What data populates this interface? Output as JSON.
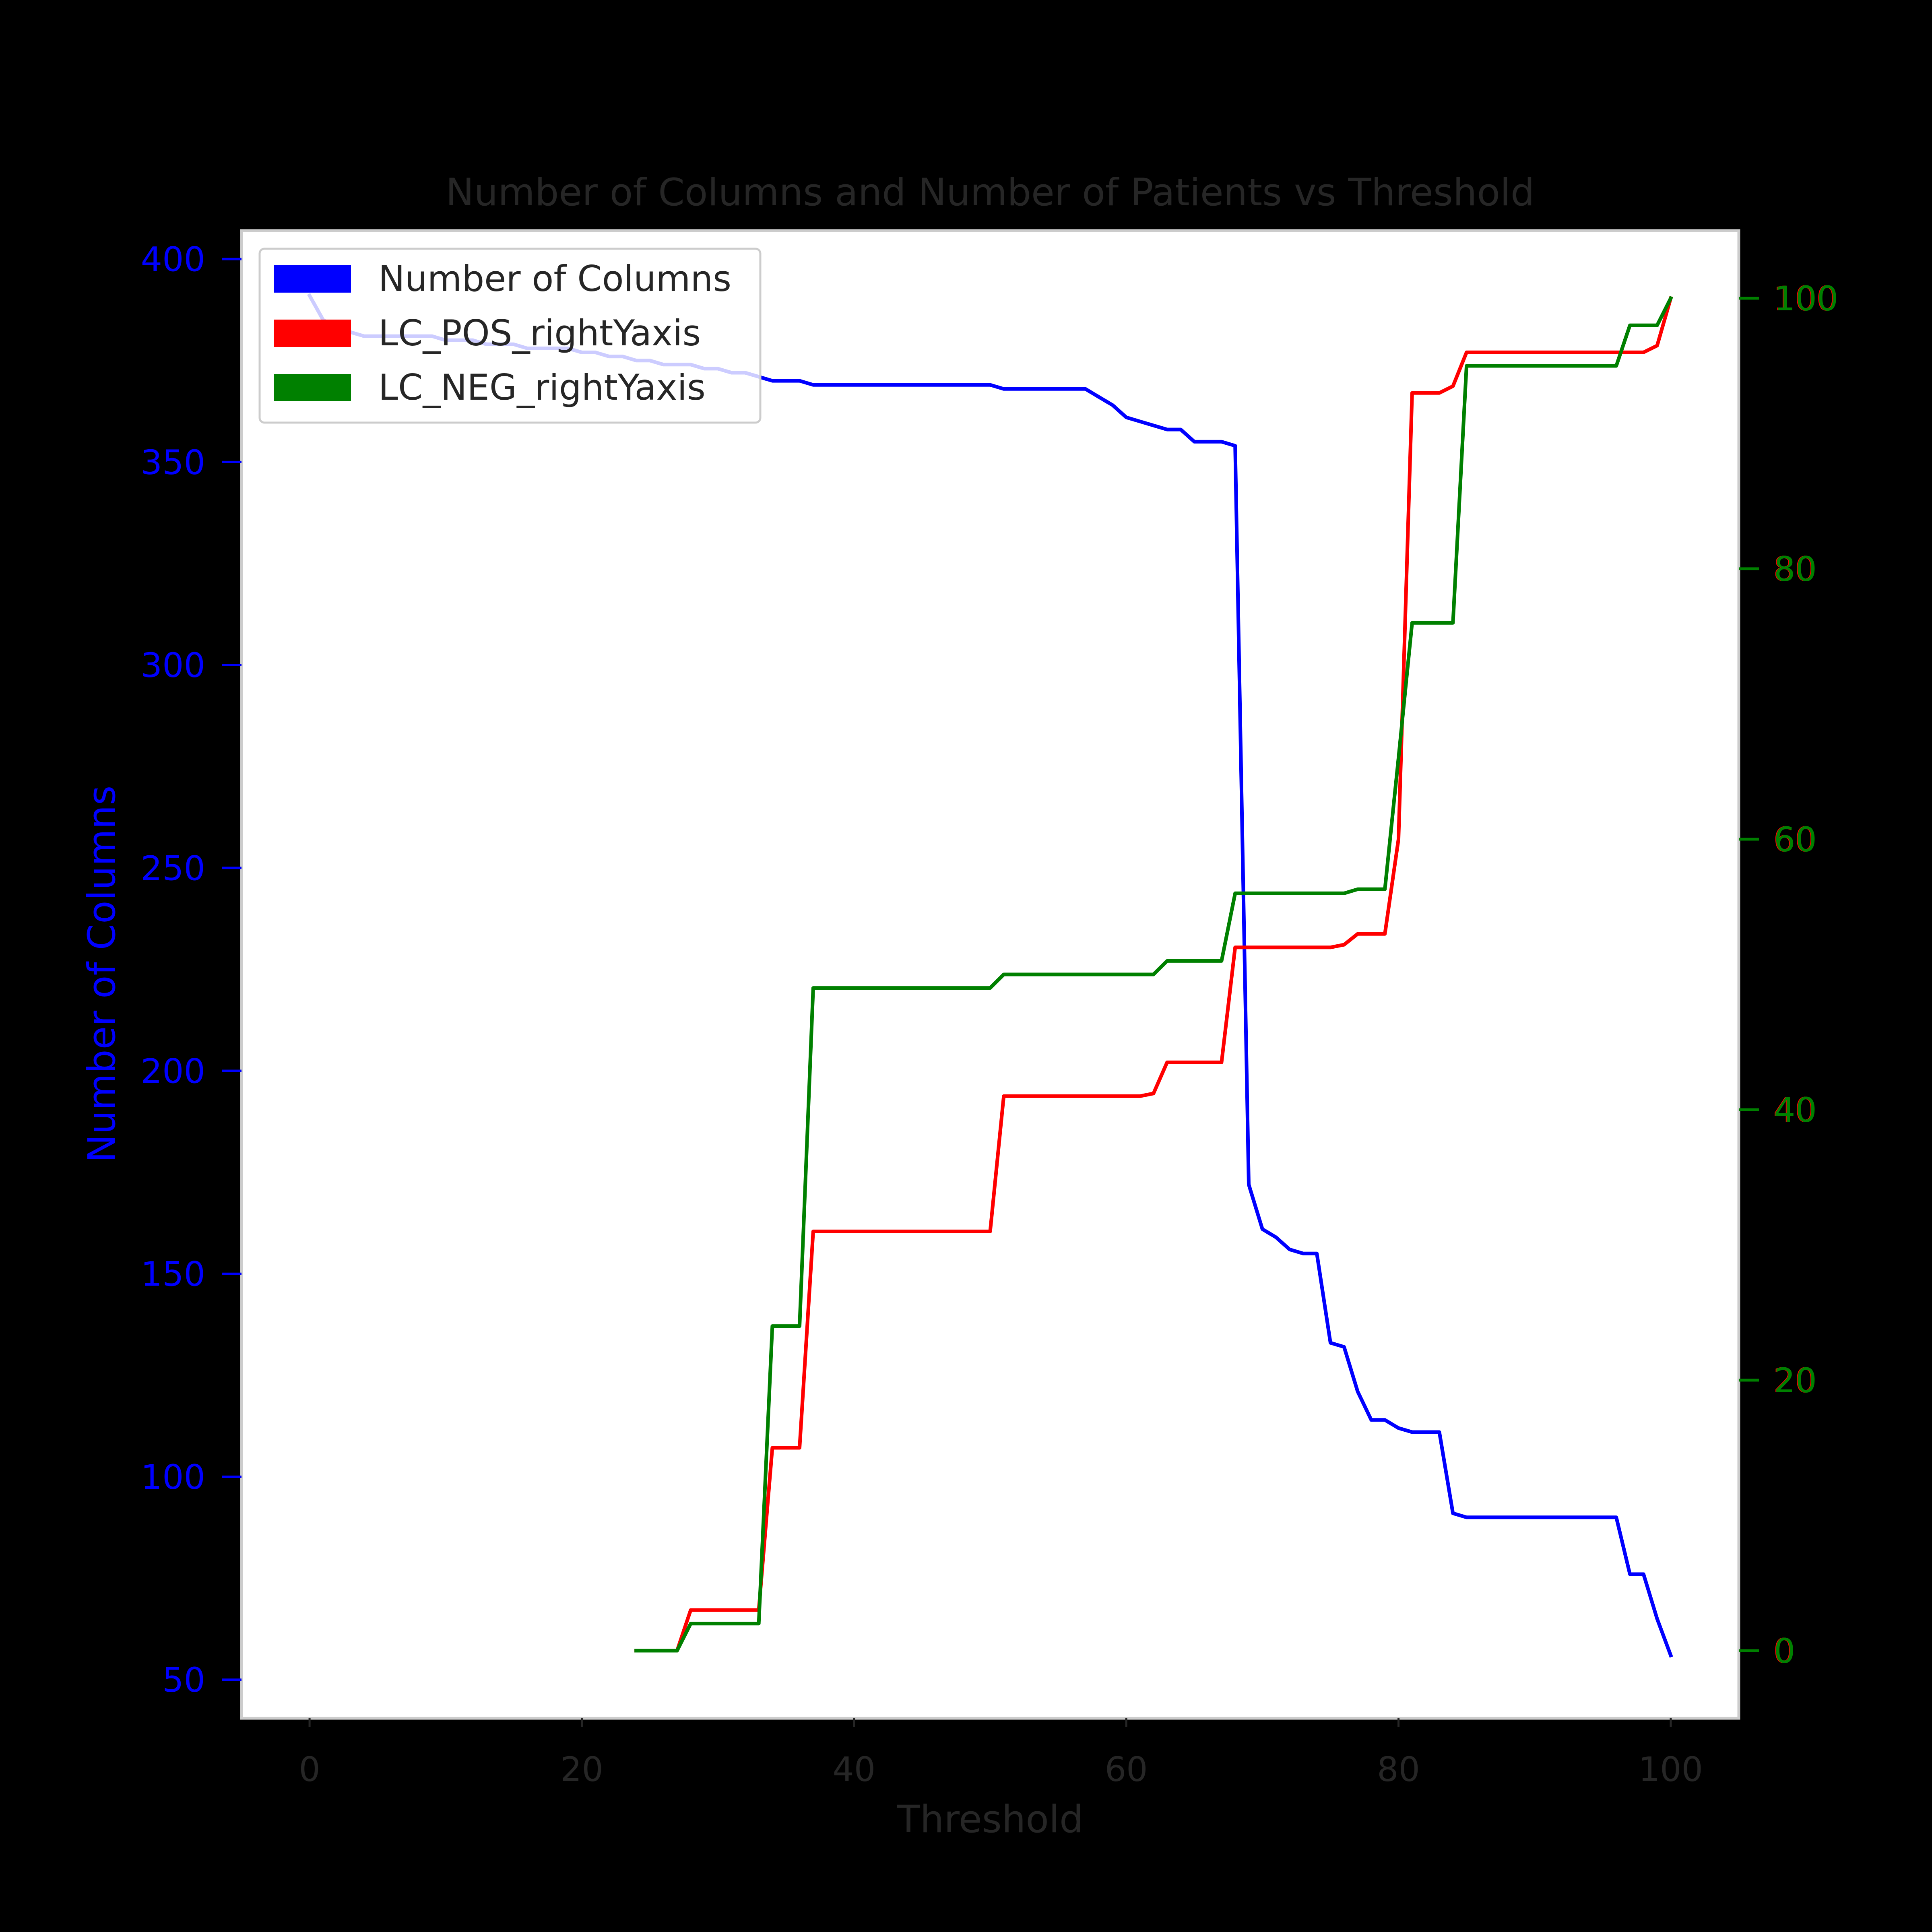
{
  "chart_data": {
    "type": "line",
    "title": "Number of Columns and Number of Patients vs Threshold",
    "xlabel": "Threshold",
    "ylabel": "Number of Columns",
    "xlim": [
      -5,
      105
    ],
    "ylim_left": [
      40.5,
      407
    ],
    "ylim_right": [
      -5,
      105
    ],
    "x_ticks": [
      0,
      20,
      40,
      60,
      80,
      100
    ],
    "y_ticks_left": [
      50,
      100,
      150,
      200,
      250,
      300,
      350,
      400
    ],
    "y_ticks_right": [
      0,
      20,
      40,
      60,
      80,
      100
    ],
    "colors": {
      "left_axis": "#0000ff",
      "pos": "#ff0000",
      "neg": "#008000",
      "text": "#262626",
      "spine": "#cccccc"
    },
    "legend_position": "upper left",
    "legend": [
      "Number of Columns",
      "LC_POS_rightYaxis",
      "LC_NEG_rightYaxis"
    ],
    "series": [
      {
        "name": "Number of Columns",
        "axis": "left",
        "color": "#0000ff",
        "points": [
          [
            0,
            391
          ],
          [
            1,
            385
          ],
          [
            2,
            383
          ],
          [
            3,
            382
          ],
          [
            4,
            381
          ],
          [
            5,
            381
          ],
          [
            6,
            381
          ],
          [
            7,
            381
          ],
          [
            8,
            381
          ],
          [
            9,
            381
          ],
          [
            10,
            380
          ],
          [
            11,
            380
          ],
          [
            12,
            380
          ],
          [
            13,
            379
          ],
          [
            14,
            379
          ],
          [
            15,
            379
          ],
          [
            16,
            378
          ],
          [
            17,
            378
          ],
          [
            18,
            378
          ],
          [
            19,
            378
          ],
          [
            20,
            377
          ],
          [
            21,
            377
          ],
          [
            22,
            376
          ],
          [
            23,
            376
          ],
          [
            24,
            375
          ],
          [
            25,
            375
          ],
          [
            26,
            374
          ],
          [
            27,
            374
          ],
          [
            28,
            374
          ],
          [
            29,
            373
          ],
          [
            30,
            373
          ],
          [
            31,
            372
          ],
          [
            32,
            372
          ],
          [
            33,
            371
          ],
          [
            34,
            370
          ],
          [
            35,
            370
          ],
          [
            36,
            370
          ],
          [
            37,
            369
          ],
          [
            38,
            369
          ],
          [
            39,
            369
          ],
          [
            40,
            369
          ],
          [
            41,
            369
          ],
          [
            42,
            369
          ],
          [
            43,
            369
          ],
          [
            44,
            369
          ],
          [
            45,
            369
          ],
          [
            46,
            369
          ],
          [
            47,
            369
          ],
          [
            48,
            369
          ],
          [
            49,
            369
          ],
          [
            50,
            369
          ],
          [
            51,
            368
          ],
          [
            52,
            368
          ],
          [
            53,
            368
          ],
          [
            54,
            368
          ],
          [
            55,
            368
          ],
          [
            56,
            368
          ],
          [
            57,
            368
          ],
          [
            58,
            366
          ],
          [
            59,
            364
          ],
          [
            60,
            361
          ],
          [
            61,
            360
          ],
          [
            62,
            359
          ],
          [
            63,
            358
          ],
          [
            64,
            358
          ],
          [
            65,
            355
          ],
          [
            66,
            355
          ],
          [
            67,
            355
          ],
          [
            68,
            354
          ],
          [
            69,
            172
          ],
          [
            70,
            161
          ],
          [
            71,
            159
          ],
          [
            72,
            156
          ],
          [
            73,
            155
          ],
          [
            74,
            155
          ],
          [
            75,
            133
          ],
          [
            76,
            132
          ],
          [
            77,
            121
          ],
          [
            78,
            114
          ],
          [
            79,
            114
          ],
          [
            80,
            112
          ],
          [
            81,
            111
          ],
          [
            82,
            111
          ],
          [
            83,
            111
          ],
          [
            84,
            91
          ],
          [
            85,
            90
          ],
          [
            86,
            90
          ],
          [
            87,
            90
          ],
          [
            88,
            90
          ],
          [
            89,
            90
          ],
          [
            90,
            90
          ],
          [
            91,
            90
          ],
          [
            92,
            90
          ],
          [
            93,
            90
          ],
          [
            94,
            90
          ],
          [
            95,
            90
          ],
          [
            96,
            90
          ],
          [
            97,
            76
          ],
          [
            98,
            76
          ],
          [
            99,
            65
          ],
          [
            100,
            56
          ]
        ]
      },
      {
        "name": "LC_POS_rightYaxis",
        "axis": "right",
        "color": "#ff0000",
        "points": [
          [
            24,
            0
          ],
          [
            25,
            0
          ],
          [
            26,
            0
          ],
          [
            27,
            0
          ],
          [
            28,
            3
          ],
          [
            29,
            3
          ],
          [
            30,
            3
          ],
          [
            31,
            3
          ],
          [
            32,
            3
          ],
          [
            33,
            3
          ],
          [
            34,
            15
          ],
          [
            35,
            15
          ],
          [
            36,
            15
          ],
          [
            37,
            31
          ],
          [
            38,
            31
          ],
          [
            39,
            31
          ],
          [
            40,
            31
          ],
          [
            41,
            31
          ],
          [
            42,
            31
          ],
          [
            43,
            31
          ],
          [
            44,
            31
          ],
          [
            45,
            31
          ],
          [
            46,
            31
          ],
          [
            47,
            31
          ],
          [
            48,
            31
          ],
          [
            49,
            31
          ],
          [
            50,
            31
          ],
          [
            51,
            41
          ],
          [
            52,
            41
          ],
          [
            53,
            41
          ],
          [
            54,
            41
          ],
          [
            55,
            41
          ],
          [
            56,
            41
          ],
          [
            57,
            41
          ],
          [
            58,
            41
          ],
          [
            59,
            41
          ],
          [
            60,
            41
          ],
          [
            61,
            41
          ],
          [
            62,
            41.2
          ],
          [
            63,
            43.5
          ],
          [
            64,
            43.5
          ],
          [
            65,
            43.5
          ],
          [
            66,
            43.5
          ],
          [
            67,
            43.5
          ],
          [
            68,
            52
          ],
          [
            69,
            52
          ],
          [
            70,
            52
          ],
          [
            71,
            52
          ],
          [
            72,
            52
          ],
          [
            73,
            52
          ],
          [
            74,
            52
          ],
          [
            75,
            52
          ],
          [
            76,
            52.2
          ],
          [
            77,
            53
          ],
          [
            78,
            53
          ],
          [
            79,
            53
          ],
          [
            80,
            60
          ],
          [
            81,
            93
          ],
          [
            82,
            93
          ],
          [
            83,
            93
          ],
          [
            84,
            93.5
          ],
          [
            85,
            96
          ],
          [
            86,
            96
          ],
          [
            87,
            96
          ],
          [
            88,
            96
          ],
          [
            89,
            96
          ],
          [
            90,
            96
          ],
          [
            91,
            96
          ],
          [
            92,
            96
          ],
          [
            93,
            96
          ],
          [
            94,
            96
          ],
          [
            95,
            96
          ],
          [
            96,
            96
          ],
          [
            97,
            96
          ],
          [
            98,
            96
          ],
          [
            99,
            96.5
          ],
          [
            100,
            100
          ]
        ]
      },
      {
        "name": "LC_NEG_rightYaxis",
        "axis": "right",
        "color": "#008000",
        "points": [
          [
            24,
            0
          ],
          [
            25,
            0
          ],
          [
            26,
            0
          ],
          [
            27,
            0
          ],
          [
            28,
            2
          ],
          [
            29,
            2
          ],
          [
            30,
            2
          ],
          [
            31,
            2
          ],
          [
            32,
            2
          ],
          [
            33,
            2
          ],
          [
            34,
            24
          ],
          [
            35,
            24
          ],
          [
            36,
            24
          ],
          [
            37,
            49
          ],
          [
            38,
            49
          ],
          [
            39,
            49
          ],
          [
            40,
            49
          ],
          [
            41,
            49
          ],
          [
            42,
            49
          ],
          [
            43,
            49
          ],
          [
            44,
            49
          ],
          [
            45,
            49
          ],
          [
            46,
            49
          ],
          [
            47,
            49
          ],
          [
            48,
            49
          ],
          [
            49,
            49
          ],
          [
            50,
            49
          ],
          [
            51,
            50
          ],
          [
            52,
            50
          ],
          [
            53,
            50
          ],
          [
            54,
            50
          ],
          [
            55,
            50
          ],
          [
            56,
            50
          ],
          [
            57,
            50
          ],
          [
            58,
            50
          ],
          [
            59,
            50
          ],
          [
            60,
            50
          ],
          [
            61,
            50
          ],
          [
            62,
            50
          ],
          [
            63,
            51
          ],
          [
            64,
            51
          ],
          [
            65,
            51
          ],
          [
            66,
            51
          ],
          [
            67,
            51
          ],
          [
            68,
            56
          ],
          [
            69,
            56
          ],
          [
            70,
            56
          ],
          [
            71,
            56
          ],
          [
            72,
            56
          ],
          [
            73,
            56
          ],
          [
            74,
            56
          ],
          [
            75,
            56
          ],
          [
            76,
            56
          ],
          [
            77,
            56.3
          ],
          [
            78,
            56.3
          ],
          [
            79,
            56.3
          ],
          [
            80,
            66
          ],
          [
            81,
            76
          ],
          [
            82,
            76
          ],
          [
            83,
            76
          ],
          [
            84,
            76
          ],
          [
            85,
            95
          ],
          [
            86,
            95
          ],
          [
            87,
            95
          ],
          [
            88,
            95
          ],
          [
            89,
            95
          ],
          [
            90,
            95
          ],
          [
            91,
            95
          ],
          [
            92,
            95
          ],
          [
            93,
            95
          ],
          [
            94,
            95
          ],
          [
            95,
            95
          ],
          [
            96,
            95
          ],
          [
            97,
            98
          ],
          [
            98,
            98
          ],
          [
            99,
            98
          ],
          [
            100,
            100
          ]
        ]
      }
    ]
  }
}
